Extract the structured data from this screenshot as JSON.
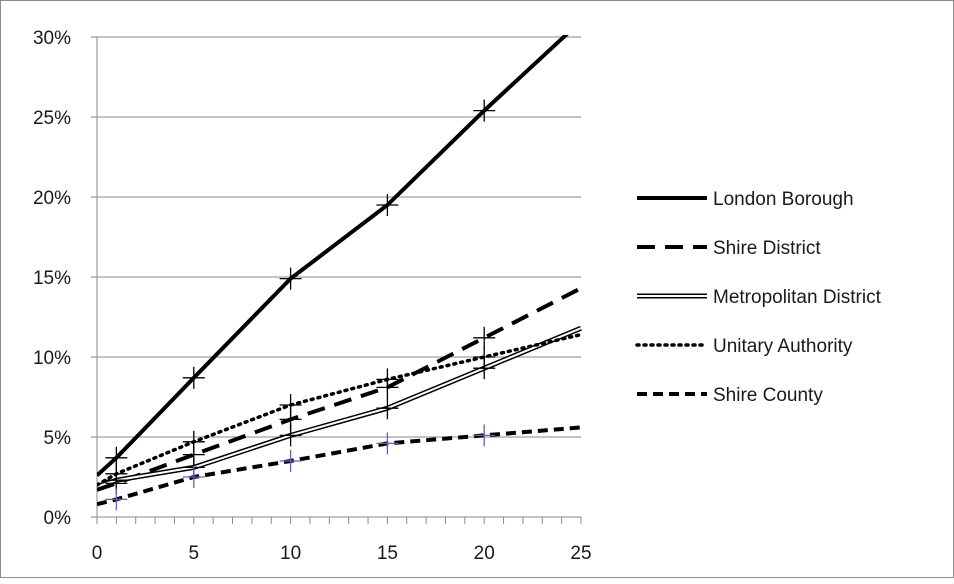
{
  "chart_data": {
    "type": "line",
    "title": "",
    "xlabel": "",
    "ylabel": "",
    "xlim": [
      0,
      25
    ],
    "ylim": [
      0,
      30
    ],
    "x_ticks": [
      0,
      5,
      10,
      15,
      20,
      25
    ],
    "x_tick_labels": [
      "0",
      "5",
      "10",
      "15",
      "20",
      "25"
    ],
    "y_ticks": [
      0,
      5,
      10,
      15,
      20,
      25,
      30
    ],
    "y_tick_labels": [
      "0%",
      "5%",
      "10%",
      "15%",
      "20%",
      "25%",
      "30%"
    ],
    "grid": "horizontal",
    "legend_position": "right",
    "series": [
      {
        "name": "London Borough",
        "style": "solid-thick",
        "color": "#000000",
        "x": [
          0,
          1,
          5,
          10,
          15,
          20,
          25
        ],
        "y": [
          2.6,
          3.7,
          8.7,
          14.9,
          19.5,
          25.4,
          31.0
        ],
        "markers_at": [
          1,
          5,
          10,
          15,
          20
        ]
      },
      {
        "name": "Shire District",
        "style": "long-dash",
        "color": "#000000",
        "x": [
          0,
          1,
          5,
          10,
          15,
          20,
          25
        ],
        "y": [
          1.7,
          2.1,
          3.9,
          6.1,
          8.1,
          11.2,
          14.3
        ],
        "markers_at": [
          1,
          5,
          10,
          15,
          20
        ]
      },
      {
        "name": "Metropolitan District",
        "style": "double-line",
        "color": "#000000",
        "x": [
          0,
          1,
          5,
          10,
          15,
          20,
          25
        ],
        "y": [
          1.9,
          2.3,
          3.1,
          5.1,
          6.8,
          9.3,
          11.8
        ],
        "markers_at": [
          1,
          5,
          10,
          15,
          20
        ]
      },
      {
        "name": "Unitary Authority",
        "style": "dotted",
        "color": "#000000",
        "x": [
          0,
          1,
          5,
          10,
          15,
          20,
          25
        ],
        "y": [
          2.0,
          2.7,
          4.7,
          7.0,
          8.6,
          10.0,
          11.4
        ],
        "markers_at": [
          1,
          5,
          10,
          15,
          20
        ]
      },
      {
        "name": "Shire County",
        "style": "short-dash",
        "color": "#000000",
        "x": [
          0,
          1,
          5,
          10,
          15,
          20,
          25
        ],
        "y": [
          0.8,
          1.1,
          2.5,
          3.5,
          4.6,
          5.1,
          5.6
        ],
        "markers_at": [
          1,
          5,
          10,
          15,
          20
        ],
        "marker_color": "#6a5acd"
      }
    ]
  }
}
